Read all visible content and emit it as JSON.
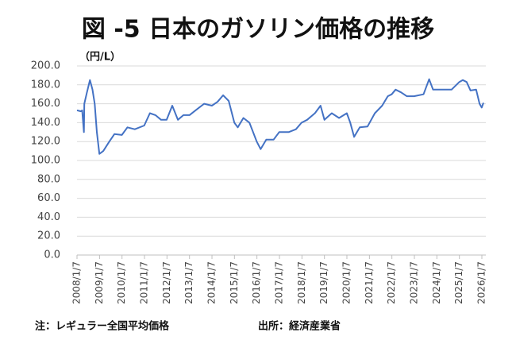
{
  "chart_data": {
    "type": "line",
    "title": "図 -5 日本のガソリン価格の推移",
    "unit_label": "（円/L）",
    "note": "注：レギュラー全国平均価格",
    "source": "出所：経済産業省",
    "x": [
      "2008/1/7",
      "2008/3/10",
      "2008/3/31",
      "2008/4/28",
      "2008/5/5",
      "2008/6/16",
      "2008/8/4",
      "2008/9/15",
      "2008/10/20",
      "2008/11/24",
      "2009/1/5",
      "2009/3/9",
      "2009/6/15",
      "2009/9/7",
      "2010/1/4",
      "2010/4/5",
      "2010/8/2",
      "2011/1/3",
      "2011/4/4",
      "2011/7/4",
      "2011/10/3",
      "2012/1/2",
      "2012/4/2",
      "2012/7/2",
      "2012/10/1",
      "2013/1/7",
      "2013/5/6",
      "2013/9/2",
      "2014/1/6",
      "2014/4/7",
      "2014/7/7",
      "2014/10/6",
      "2015/1/5",
      "2015/3/2",
      "2015/6/1",
      "2015/9/7",
      "2016/1/4",
      "2016/3/7",
      "2016/6/6",
      "2016/10/3",
      "2017/1/2",
      "2017/6/5",
      "2017/10/2",
      "2018/1/1",
      "2018/4/2",
      "2018/8/6",
      "2018/11/5",
      "2019/1/7",
      "2019/5/6",
      "2019/9/2",
      "2020/1/6",
      "2020/3/2",
      "2020/5/4",
      "2020/8/3",
      "2020/12/7",
      "2021/4/5",
      "2021/8/2",
      "2021/11/1",
      "2022/1/3",
      "2022/3/7",
      "2022/6/6",
      "2022/9/5",
      "2023/1/2",
      "2023/6/5",
      "2023/9/4",
      "2023/11/6",
      "2024/3/4",
      "2024/9/2",
      "2025/1/6",
      "2025/3/3",
      "2025/5/5",
      "2025/7/7",
      "2025/10/6",
      "2025/12/1",
      "2026/1/5",
      "2026/2/2"
    ],
    "series": [
      {
        "name": "レギュラー",
        "color": "#4472c4",
        "values": [
          153,
          152,
          153,
          130,
          160,
          172,
          185,
          175,
          160,
          130,
          107,
          110,
          120,
          128,
          127,
          135,
          133,
          137,
          150,
          148,
          143,
          143,
          158,
          143,
          148,
          148,
          154,
          160,
          158,
          162,
          169,
          163,
          140,
          135,
          145,
          140,
          120,
          112,
          122,
          122,
          130,
          130,
          133,
          140,
          143,
          150,
          158,
          143,
          150,
          145,
          150,
          140,
          125,
          135,
          136,
          150,
          158,
          168,
          170,
          175,
          172,
          168,
          168,
          170,
          186,
          175,
          175,
          175,
          183,
          185,
          183,
          174,
          175,
          160,
          156,
          161
        ]
      }
    ],
    "xlim": [
      "2008/1/7",
      "2026/2/2"
    ],
    "xticks": [
      "2008/1/7",
      "2009/1/7",
      "2010/1/7",
      "2011/1/7",
      "2012/1/7",
      "2013/1/7",
      "2014/1/7",
      "2015/1/7",
      "2016/1/7",
      "2017/1/7",
      "2018/1/7",
      "2019/1/7",
      "2020/1/7",
      "2021/1/7",
      "2022/1/7",
      "2023/1/7",
      "2024/1/7",
      "2025/1/7",
      "2026/1/7"
    ],
    "ylim": [
      0,
      200
    ],
    "yticks": [
      {
        "value": 0,
        "label": "0.0"
      },
      {
        "value": 20,
        "label": "20.0"
      },
      {
        "value": 40,
        "label": "40.0"
      },
      {
        "value": 60,
        "label": "60.0"
      },
      {
        "value": 80,
        "label": "80.0"
      },
      {
        "value": 100,
        "label": "100.0"
      },
      {
        "value": 120,
        "label": "120.0"
      },
      {
        "value": 140,
        "label": "140.0"
      },
      {
        "value": 160,
        "label": "160.0"
      },
      {
        "value": 180,
        "label": "180.0"
      },
      {
        "value": 200,
        "label": "200.0"
      }
    ],
    "grid": true
  }
}
